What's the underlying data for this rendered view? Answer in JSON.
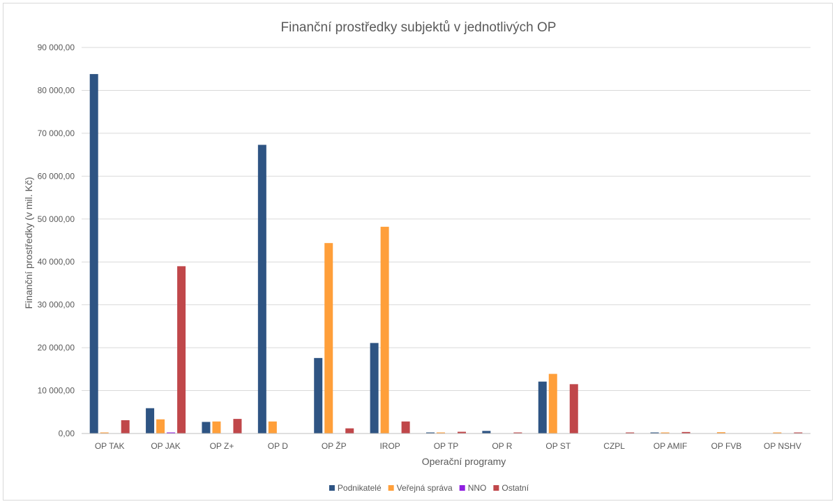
{
  "chart_data": {
    "type": "bar",
    "title": "Finanční prostředky subjektů v jednotlivých OP",
    "xlabel": "Operační programy",
    "ylabel": "Finanční prostředky (v mil. Kč)",
    "ylim": [
      0,
      90000
    ],
    "yticks": [
      0,
      10000,
      20000,
      30000,
      40000,
      50000,
      60000,
      70000,
      80000,
      90000
    ],
    "ytick_labels": [
      "0,00",
      "10 000,00",
      "20 000,00",
      "30 000,00",
      "40 000,00",
      "50 000,00",
      "60 000,00",
      "70 000,00",
      "80 000,00",
      "90 000,00"
    ],
    "grid": true,
    "legend_position": "bottom",
    "categories": [
      "OP TAK",
      "OP JAK",
      "OP Z+",
      "OP D",
      "OP ŽP",
      "IROP",
      "OP TP",
      "OP R",
      "OP ST",
      "CZPL",
      "OP AMIF",
      "OP FVB",
      "OP NSHV"
    ],
    "series": [
      {
        "name": "Podnikatelé",
        "color": "#2e5483",
        "values": [
          83800,
          5900,
          2700,
          67300,
          17600,
          21100,
          200,
          600,
          12100,
          0,
          100,
          0,
          0
        ]
      },
      {
        "name": "Veřejná správa",
        "color": "#ff9f3a",
        "values": [
          100,
          3300,
          2800,
          2800,
          44400,
          48200,
          200,
          0,
          13900,
          0,
          50,
          300,
          150
        ]
      },
      {
        "name": "NNO",
        "color": "#8f1fe0",
        "values": [
          0,
          150,
          0,
          0,
          0,
          0,
          0,
          0,
          0,
          0,
          0,
          0,
          0
        ]
      },
      {
        "name": "Ostatní",
        "color": "#c0474a",
        "values": [
          3100,
          39000,
          3400,
          0,
          1200,
          2800,
          400,
          50,
          11500,
          50,
          350,
          0,
          50
        ]
      }
    ]
  }
}
